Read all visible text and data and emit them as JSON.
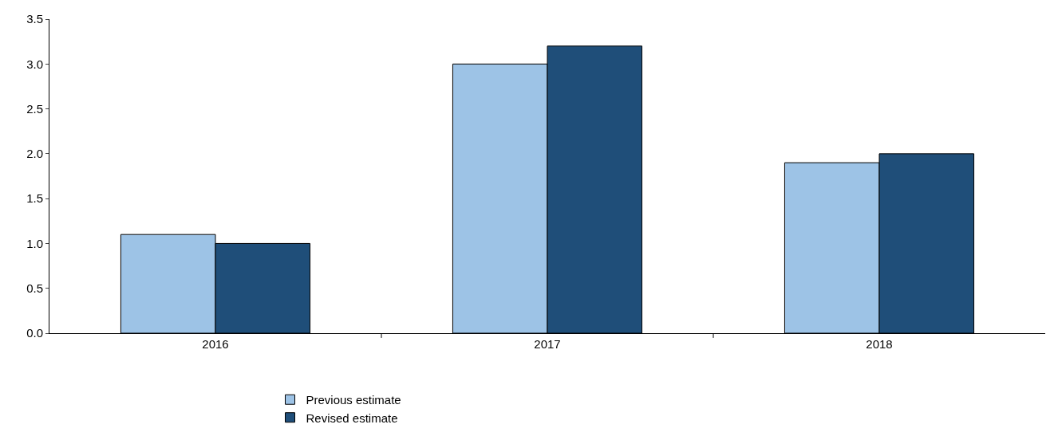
{
  "chart_data": {
    "type": "bar",
    "categories": [
      "2016",
      "2017",
      "2018"
    ],
    "series": [
      {
        "name": "Previous estimate",
        "color": "#9dc3e6",
        "values": [
          1.1,
          3.0,
          1.9
        ]
      },
      {
        "name": "Revised estimate",
        "color": "#1f4e79",
        "values": [
          1.0,
          3.2,
          2.0
        ]
      }
    ],
    "ylim": [
      0,
      3.5
    ],
    "yticks": [
      {
        "value": 0,
        "label": "0.0"
      },
      {
        "value": 0.5,
        "label": "0.5"
      },
      {
        "value": 1,
        "label": "1.0"
      },
      {
        "value": 1.5,
        "label": "1.5"
      },
      {
        "value": 2,
        "label": "2.0"
      },
      {
        "value": 2.5,
        "label": "2.5"
      },
      {
        "value": 3,
        "label": "3.0"
      },
      {
        "value": 3.5,
        "label": "3.5"
      }
    ],
    "grid": false,
    "legend": "bottom"
  }
}
